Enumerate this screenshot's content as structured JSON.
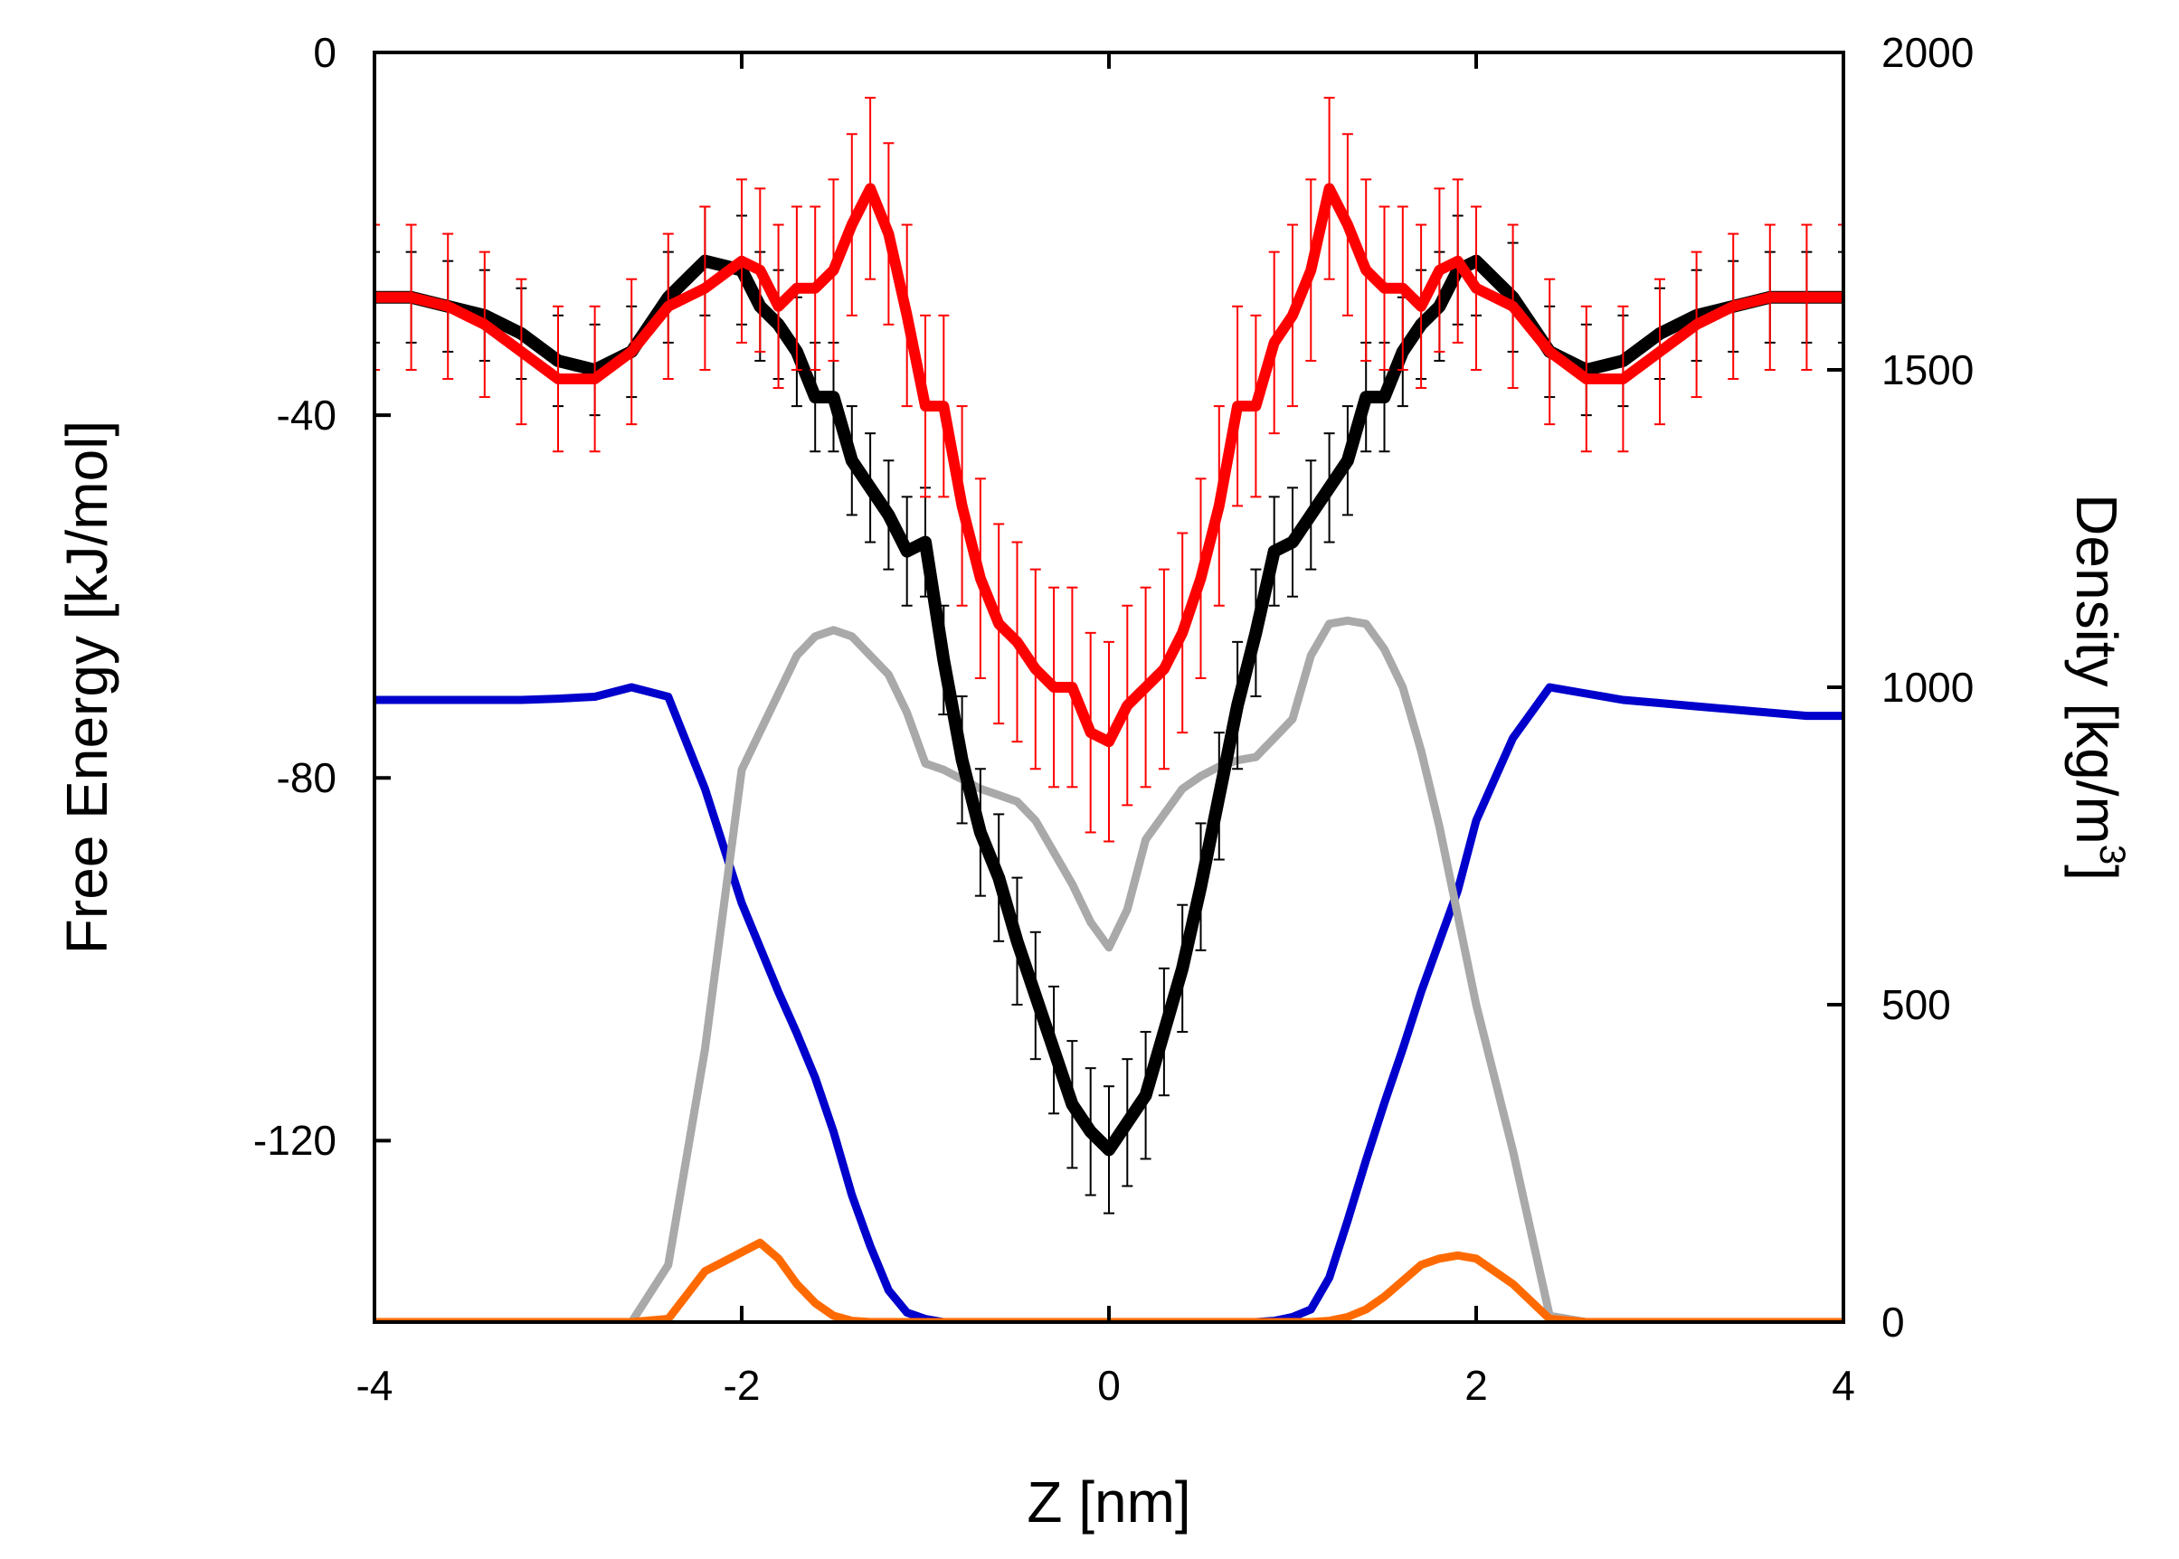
{
  "chart_data": {
    "type": "line",
    "title": "",
    "xlabel": "Z [nm]",
    "ylabel_left": "Free Energy [kJ/mol]",
    "ylabel_right_base": "Density [kg/m",
    "ylabel_right_sup": "3",
    "ylabel_right_close": "]",
    "xlim": [
      -4,
      4
    ],
    "ylim_left": [
      -140,
      0
    ],
    "ylim_right": [
      0,
      2000
    ],
    "xticks": [
      "-4",
      "-2",
      "0",
      "2",
      "4"
    ],
    "yticks_left": [
      "0",
      "-40",
      "-80",
      "-120"
    ],
    "yticks_right": [
      "2000",
      "1500",
      "1000",
      "500",
      "0"
    ],
    "grid": false,
    "legend": "none",
    "colors": {
      "fe_black": "#000000",
      "fe_red": "#ff0000",
      "density_blue": "#0000cc",
      "density_gray": "#a9a9a9",
      "density_orange": "#ff6a00"
    },
    "x": [
      -4.0,
      -3.8,
      -3.6,
      -3.4,
      -3.2,
      -3.0,
      -2.8,
      -2.6,
      -2.4,
      -2.2,
      -2.0,
      -1.9,
      -1.8,
      -1.7,
      -1.6,
      -1.5,
      -1.4,
      -1.3,
      -1.2,
      -1.1,
      -1.0,
      -0.9,
      -0.8,
      -0.7,
      -0.6,
      -0.5,
      -0.4,
      -0.3,
      -0.2,
      -0.1,
      0.0,
      0.1,
      0.2,
      0.3,
      0.4,
      0.5,
      0.6,
      0.7,
      0.8,
      0.9,
      1.0,
      1.1,
      1.2,
      1.3,
      1.4,
      1.5,
      1.6,
      1.7,
      1.8,
      1.9,
      2.0,
      2.2,
      2.4,
      2.6,
      2.8,
      3.0,
      3.2,
      3.4,
      3.6,
      3.8,
      4.0
    ],
    "series": [
      {
        "name": "Free energy (black)",
        "axis": "left",
        "color_key": "fe_black",
        "values": [
          -27,
          -27,
          -28,
          -29,
          -31,
          -34,
          -35,
          -33,
          -27,
          -23,
          -24,
          -28,
          -30,
          -33,
          -38,
          -38,
          -45,
          -48,
          -51,
          -55,
          -54,
          -67,
          -78,
          -86,
          -91,
          -98,
          -104,
          -110,
          -116,
          -119,
          -121,
          -118,
          -115,
          -108,
          -101,
          -92,
          -82,
          -72,
          -64,
          -55,
          -54,
          -51,
          -48,
          -45,
          -38,
          -38,
          -33,
          -30,
          -28,
          -24,
          -23,
          -27,
          -33,
          -35,
          -34,
          -31,
          -29,
          -28,
          -27,
          -27,
          -27
        ],
        "errors": [
          5,
          5,
          5,
          5,
          5,
          5,
          5,
          5,
          5,
          6,
          6,
          6,
          6,
          6,
          6,
          6,
          6,
          6,
          6,
          6,
          6,
          6,
          7,
          7,
          7,
          7,
          7,
          7,
          7,
          7,
          7,
          7,
          7,
          7,
          7,
          7,
          7,
          7,
          7,
          6,
          6,
          6,
          6,
          6,
          6,
          6,
          6,
          6,
          6,
          6,
          6,
          6,
          5,
          5,
          5,
          5,
          5,
          5,
          5,
          5,
          5
        ]
      },
      {
        "name": "Free energy (red)",
        "axis": "left",
        "color_key": "fe_red",
        "values": [
          -27,
          -27,
          -28,
          -30,
          -33,
          -36,
          -36,
          -33,
          -28,
          -26,
          -23,
          -24,
          -28,
          -26,
          -26,
          -24,
          -19,
          -15,
          -20,
          -29,
          -39,
          -39,
          -50,
          -58,
          -63,
          -65,
          -68,
          -70,
          -70,
          -75,
          -76,
          -72,
          -70,
          -68,
          -64,
          -58,
          -50,
          -39,
          -39,
          -32,
          -29,
          -24,
          -15,
          -19,
          -24,
          -26,
          -26,
          -28,
          -24,
          -23,
          -26,
          -28,
          -33,
          -36,
          -36,
          -33,
          -30,
          -28,
          -27,
          -27,
          -27
        ],
        "errors": [
          8,
          8,
          8,
          8,
          8,
          8,
          8,
          8,
          8,
          9,
          9,
          9,
          9,
          9,
          9,
          10,
          10,
          10,
          10,
          10,
          10,
          10,
          11,
          11,
          11,
          11,
          11,
          11,
          11,
          11,
          11,
          11,
          11,
          11,
          11,
          11,
          11,
          11,
          10,
          10,
          10,
          10,
          10,
          10,
          10,
          9,
          9,
          9,
          9,
          9,
          9,
          9,
          8,
          8,
          8,
          8,
          8,
          8,
          8,
          8,
          8
        ]
      },
      {
        "name": "Density (blue)",
        "axis": "right",
        "color_key": "density_blue",
        "values": [
          980,
          980,
          980,
          980,
          980,
          982,
          985,
          1000,
          985,
          840,
          660,
          590,
          520,
          455,
          385,
          300,
          200,
          120,
          50,
          15,
          5,
          0,
          0,
          0,
          0,
          0,
          0,
          0,
          0,
          0,
          0,
          0,
          0,
          0,
          0,
          0,
          0,
          0,
          0,
          2,
          8,
          20,
          70,
          160,
          255,
          345,
          430,
          520,
          600,
          680,
          790,
          920,
          1000,
          990,
          980,
          975,
          970,
          965,
          960,
          955,
          955
        ]
      },
      {
        "name": "Density (gray)",
        "axis": "right",
        "color_key": "density_gray",
        "values": [
          0,
          0,
          0,
          0,
          0,
          0,
          0,
          0,
          90,
          430,
          870,
          930,
          990,
          1050,
          1080,
          1090,
          1080,
          1050,
          1020,
          960,
          880,
          870,
          855,
          840,
          830,
          820,
          790,
          740,
          690,
          630,
          590,
          650,
          760,
          800,
          840,
          860,
          875,
          885,
          890,
          920,
          950,
          1050,
          1100,
          1105,
          1100,
          1060,
          1000,
          900,
          780,
          640,
          500,
          270,
          10,
          0,
          0,
          0,
          0,
          0,
          0,
          0,
          0
        ]
      },
      {
        "name": "Density (orange)",
        "axis": "right",
        "color_key": "density_orange",
        "values": [
          0,
          0,
          0,
          0,
          0,
          0,
          0,
          0,
          5,
          80,
          110,
          125,
          100,
          60,
          30,
          10,
          2,
          0,
          0,
          0,
          0,
          0,
          0,
          0,
          0,
          0,
          0,
          0,
          0,
          0,
          0,
          0,
          0,
          0,
          0,
          0,
          0,
          0,
          0,
          0,
          0,
          0,
          2,
          8,
          20,
          40,
          65,
          90,
          100,
          105,
          100,
          60,
          5,
          0,
          0,
          0,
          0,
          0,
          0,
          0,
          0
        ]
      }
    ]
  }
}
